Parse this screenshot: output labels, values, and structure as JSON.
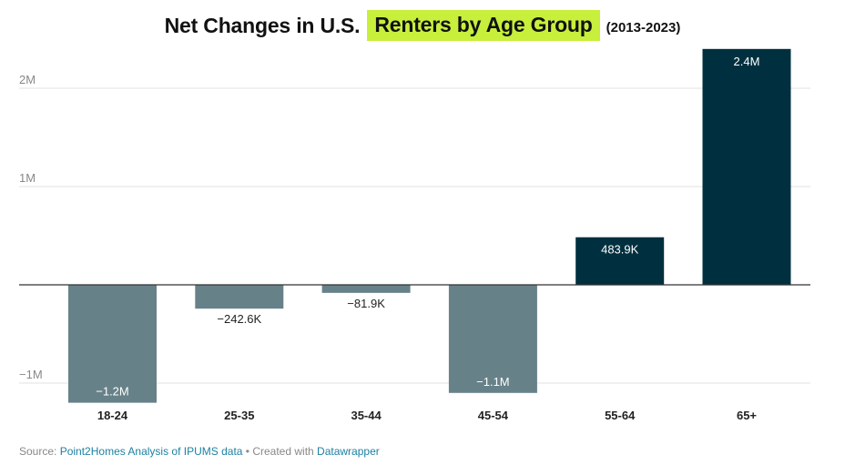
{
  "chart_data": {
    "type": "bar",
    "title": {
      "part1": "Net Changes in U.S.",
      "highlight": "Renters by Age Group",
      "subtitle": "(2013-2023)"
    },
    "categories": [
      "18-24",
      "25-35",
      "35-44",
      "45-54",
      "55-64",
      "65+"
    ],
    "values": [
      -1200000,
      -242600,
      -81900,
      -1100000,
      483900,
      2400000
    ],
    "data_labels": [
      "−1.2M",
      "−242.6K",
      "−81.9K",
      "−1.1M",
      "483.9K",
      "2.4M"
    ],
    "y_ticks": [
      {
        "value": 2000000,
        "label": "2M"
      },
      {
        "value": 1000000,
        "label": "1M"
      },
      {
        "value": -1000000,
        "label": "−1M"
      }
    ],
    "ylim": [
      -1200000,
      2400000
    ],
    "xlabel": "",
    "ylabel": "",
    "grid": true,
    "colors": {
      "negative": "#678189",
      "positive": "#00303f",
      "grid": "#e2e2e2",
      "baseline": "#333333",
      "tick_text": "#888888",
      "category_text": "#222222",
      "highlight": "#c7ef3c"
    }
  },
  "source": {
    "prefix": "Source: ",
    "source_link": "Point2Homes Analysis of IPUMS data",
    "separator": " • Created with ",
    "tool_link": "Datawrapper"
  }
}
